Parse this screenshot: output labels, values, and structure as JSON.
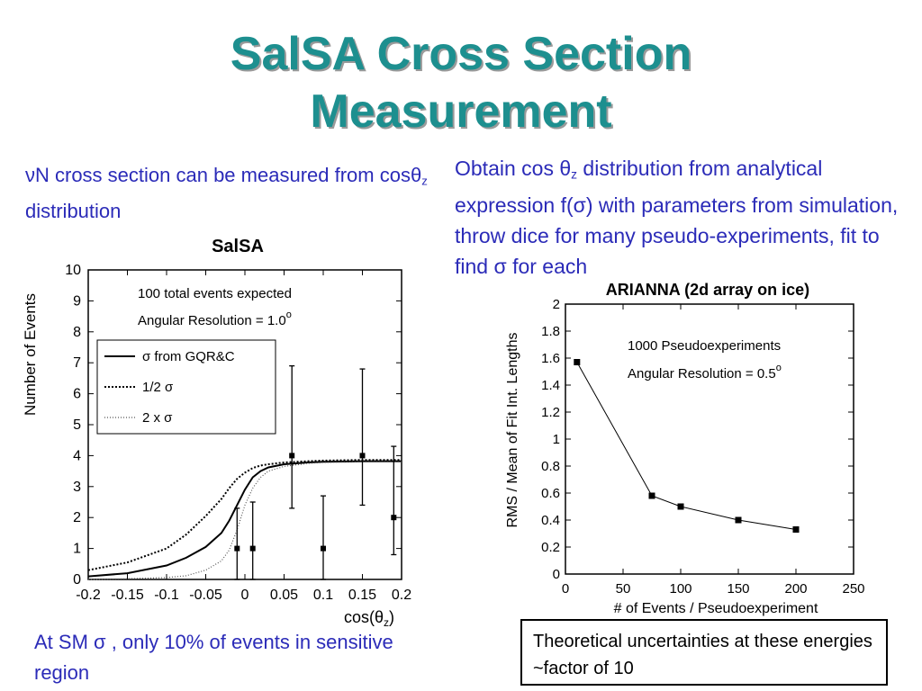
{
  "slide": {
    "title_line1": "SalSA Cross Section",
    "title_line2": "Measurement",
    "left_text": {
      "nu": "ν",
      "part1": "N cross section can be measured from cos",
      "theta": "θ",
      "sub": "z",
      "part2": " distribution"
    },
    "right_text": {
      "part1": "Obtain cos ",
      "theta": "θ",
      "sub": "z",
      "part2": " distribution from analytical expression f(",
      "sigma": "σ",
      "part3": ") with parameters from simulation, throw dice for many pseudo-experiments, fit to find ",
      "sigma2": "σ",
      "part4": " for each"
    },
    "bottom_text": {
      "part1": "At SM ",
      "sigma": "σ",
      "part2": " , only 10% of events in sensitive region"
    },
    "note": "Theoretical uncertainties at these energies ~factor of 10"
  },
  "chart_data": [
    {
      "type": "line",
      "title": "SalSA",
      "xlabel": "cos(θz)",
      "ylabel": "Number of Events",
      "xlim": [
        -0.2,
        0.2
      ],
      "ylim": [
        0,
        10
      ],
      "x_ticks": [
        -0.2,
        -0.15,
        -0.1,
        -0.05,
        0,
        0.05,
        0.1,
        0.15,
        0.2
      ],
      "x_tick_labels": [
        "-0.2",
        "-0.15",
        "-0.1",
        "-0.05",
        "0",
        "0.05",
        "0.1",
        "0.15",
        "0.2"
      ],
      "y_ticks": [
        0,
        1,
        2,
        3,
        4,
        5,
        6,
        7,
        8,
        9,
        10
      ],
      "annotations": [
        "100 total events expected",
        "Angular Resolution = 1.0",
        "o"
      ],
      "legend": [
        "σ from GQR&C",
        "1/2 σ",
        "2 x σ"
      ],
      "legend_placement": "upper-left",
      "series": [
        {
          "name": "σ from GQR&C",
          "style": "solid",
          "x": [
            -0.2,
            -0.15,
            -0.1,
            -0.075,
            -0.05,
            -0.03,
            -0.02,
            -0.01,
            0,
            0.01,
            0.02,
            0.03,
            0.05,
            0.08,
            0.1,
            0.15,
            0.2
          ],
          "y": [
            0.1,
            0.2,
            0.45,
            0.7,
            1.05,
            1.5,
            1.9,
            2.4,
            2.9,
            3.3,
            3.5,
            3.62,
            3.72,
            3.78,
            3.8,
            3.82,
            3.82
          ]
        },
        {
          "name": "1/2 σ",
          "style": "dashed",
          "x": [
            -0.2,
            -0.15,
            -0.1,
            -0.075,
            -0.05,
            -0.03,
            -0.02,
            -0.01,
            0,
            0.01,
            0.02,
            0.03,
            0.05,
            0.08,
            0.1,
            0.15,
            0.2
          ],
          "y": [
            0.3,
            0.55,
            1.0,
            1.45,
            2.05,
            2.6,
            2.95,
            3.25,
            3.45,
            3.6,
            3.68,
            3.72,
            3.78,
            3.82,
            3.84,
            3.86,
            3.86
          ]
        },
        {
          "name": "2 x σ",
          "style": "dotted",
          "x": [
            -0.2,
            -0.15,
            -0.1,
            -0.075,
            -0.05,
            -0.03,
            -0.02,
            -0.01,
            0,
            0.01,
            0.02,
            0.03,
            0.05,
            0.08,
            0.1,
            0.15,
            0.2
          ],
          "y": [
            0.0,
            0.02,
            0.06,
            0.12,
            0.3,
            0.6,
            0.95,
            1.6,
            2.4,
            2.95,
            3.3,
            3.5,
            3.65,
            3.75,
            3.78,
            3.8,
            3.8
          ]
        }
      ],
      "points": [
        {
          "x": -0.01,
          "y": 1,
          "err_low": 1,
          "err_high": 1.3
        },
        {
          "x": 0.01,
          "y": 1,
          "err_low": 1,
          "err_high": 1.5
        },
        {
          "x": 0.06,
          "y": 4,
          "err_low": 1.7,
          "err_high": 2.9
        },
        {
          "x": 0.1,
          "y": 1,
          "err_low": 1,
          "err_high": 1.7
        },
        {
          "x": 0.15,
          "y": 4,
          "err_low": 1.6,
          "err_high": 2.8
        },
        {
          "x": 0.19,
          "y": 2,
          "err_low": 1.2,
          "err_high": 2.3
        }
      ]
    },
    {
      "type": "line",
      "title": "ARIANNA (2d array on ice)",
      "xlabel": "# of Events / Pseudoexperiment",
      "ylabel": "RMS / Mean of Fit Int. Lengths",
      "xlim": [
        0,
        250
      ],
      "ylim": [
        0,
        2
      ],
      "x_ticks": [
        0,
        50,
        100,
        150,
        200,
        250
      ],
      "y_ticks": [
        0,
        0.2,
        0.4,
        0.6,
        0.8,
        1,
        1.2,
        1.4,
        1.6,
        1.8,
        2
      ],
      "annotations": [
        "1000 Pseudoexperiments",
        "Angular Resolution = 0.5",
        "o"
      ],
      "series": [
        {
          "x": [
            10,
            75,
            100,
            150,
            200
          ],
          "y": [
            1.57,
            0.58,
            0.5,
            0.4,
            0.33
          ]
        }
      ]
    }
  ]
}
